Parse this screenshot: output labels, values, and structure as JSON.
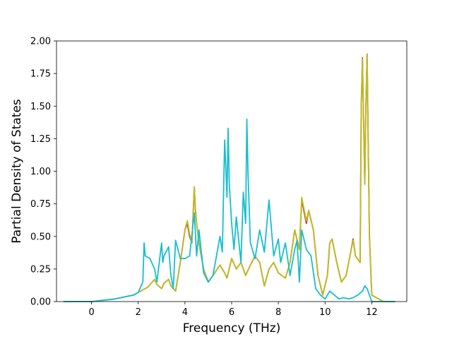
{
  "chart_data": {
    "type": "line",
    "xlabel": "Frequency (THz)",
    "ylabel": "Partial Density of States",
    "xlim": [
      -1.5,
      13.5
    ],
    "ylim": [
      0,
      2.0
    ],
    "xticks": [
      0,
      2,
      4,
      6,
      8,
      10,
      12
    ],
    "yticks": [
      0.0,
      0.25,
      0.5,
      0.75,
      1.0,
      1.25,
      1.5,
      1.75,
      2.0
    ],
    "xtick_labels": [
      "0",
      "2",
      "4",
      "6",
      "8",
      "10",
      "12"
    ],
    "ytick_labels": [
      "0.00",
      "0.25",
      "0.50",
      "0.75",
      "1.00",
      "1.25",
      "1.50",
      "1.75",
      "2.00"
    ],
    "grid": false,
    "series": [
      {
        "color": "#d62728",
        "x": [
          -1.2,
          0.0,
          1.0,
          1.8,
          2.0,
          2.4,
          2.7,
          2.8,
          3.0,
          3.1,
          3.3,
          3.4,
          3.6,
          3.8,
          4.0,
          4.1,
          4.2,
          4.3,
          4.4,
          4.45,
          4.5,
          4.6,
          4.8,
          5.0,
          5.2,
          5.5,
          5.7,
          5.8,
          6.0,
          6.2,
          6.4,
          6.6,
          6.8,
          7.0,
          7.2,
          7.4,
          7.6,
          7.8,
          8.0,
          8.3,
          8.5,
          8.7,
          8.9,
          9.0,
          9.2,
          9.3,
          9.5,
          9.7,
          9.9,
          10.1,
          10.2,
          10.3,
          10.5,
          10.7,
          10.9,
          11.1,
          11.2,
          11.3,
          11.5,
          11.55,
          11.6,
          11.65,
          11.7,
          11.75,
          11.8,
          11.85,
          11.9,
          12.0,
          12.5,
          13.0
        ],
        "y": [
          0.0,
          0.0,
          0.02,
          0.05,
          0.07,
          0.11,
          0.17,
          0.13,
          0.1,
          0.14,
          0.17,
          0.12,
          0.08,
          0.3,
          0.55,
          0.6,
          0.5,
          0.45,
          0.88,
          0.7,
          0.6,
          0.45,
          0.25,
          0.15,
          0.2,
          0.28,
          0.22,
          0.18,
          0.33,
          0.25,
          0.3,
          0.2,
          0.28,
          0.35,
          0.3,
          0.12,
          0.25,
          0.3,
          0.22,
          0.18,
          0.3,
          0.55,
          0.4,
          0.78,
          0.6,
          0.7,
          0.55,
          0.2,
          0.05,
          0.2,
          0.45,
          0.48,
          0.3,
          0.15,
          0.2,
          0.38,
          0.48,
          0.35,
          0.3,
          1.5,
          1.87,
          1.4,
          0.9,
          1.5,
          1.9,
          1.2,
          0.5,
          0.05,
          0.0,
          0.0
        ]
      },
      {
        "color": "#bcbd22",
        "x": [
          -1.2,
          0.0,
          1.0,
          1.8,
          2.0,
          2.4,
          2.7,
          2.8,
          3.0,
          3.1,
          3.3,
          3.4,
          3.6,
          3.8,
          4.0,
          4.1,
          4.2,
          4.3,
          4.4,
          4.45,
          4.5,
          4.6,
          4.8,
          5.0,
          5.2,
          5.5,
          5.7,
          5.8,
          6.0,
          6.2,
          6.4,
          6.6,
          6.8,
          7.0,
          7.2,
          7.4,
          7.6,
          7.8,
          8.0,
          8.3,
          8.5,
          8.7,
          8.9,
          9.0,
          9.2,
          9.3,
          9.5,
          9.7,
          9.9,
          10.1,
          10.2,
          10.3,
          10.5,
          10.7,
          10.9,
          11.1,
          11.2,
          11.3,
          11.5,
          11.55,
          11.6,
          11.65,
          11.7,
          11.75,
          11.8,
          11.85,
          11.9,
          12.0,
          12.5,
          13.0
        ],
        "y": [
          0.0,
          0.0,
          0.02,
          0.05,
          0.07,
          0.11,
          0.17,
          0.13,
          0.1,
          0.14,
          0.17,
          0.12,
          0.08,
          0.3,
          0.55,
          0.62,
          0.52,
          0.45,
          0.88,
          0.72,
          0.6,
          0.45,
          0.25,
          0.15,
          0.2,
          0.28,
          0.22,
          0.18,
          0.33,
          0.25,
          0.3,
          0.2,
          0.28,
          0.35,
          0.3,
          0.12,
          0.25,
          0.3,
          0.22,
          0.18,
          0.3,
          0.55,
          0.4,
          0.8,
          0.62,
          0.7,
          0.55,
          0.2,
          0.05,
          0.2,
          0.45,
          0.48,
          0.3,
          0.15,
          0.2,
          0.38,
          0.47,
          0.35,
          0.3,
          1.5,
          1.86,
          1.4,
          0.9,
          1.5,
          1.9,
          1.2,
          0.5,
          0.05,
          0.0,
          0.0
        ]
      },
      {
        "color": "#17becf",
        "x": [
          -1.2,
          0.0,
          1.0,
          1.8,
          2.0,
          2.2,
          2.25,
          2.3,
          2.5,
          2.7,
          2.8,
          3.0,
          3.05,
          3.1,
          3.3,
          3.4,
          3.5,
          3.6,
          3.8,
          4.0,
          4.2,
          4.4,
          4.5,
          4.6,
          4.8,
          5.0,
          5.2,
          5.5,
          5.6,
          5.7,
          5.8,
          5.85,
          5.9,
          6.0,
          6.1,
          6.2,
          6.4,
          6.5,
          6.6,
          6.65,
          6.7,
          6.8,
          7.0,
          7.2,
          7.4,
          7.6,
          7.8,
          8.0,
          8.1,
          8.3,
          8.5,
          8.7,
          8.8,
          8.9,
          9.0,
          9.2,
          9.4,
          9.6,
          9.8,
          10.0,
          10.2,
          10.4,
          10.6,
          10.8,
          11.0,
          11.2,
          11.4,
          11.6,
          11.7,
          11.8,
          11.9,
          12.0,
          12.5,
          13.0
        ],
        "y": [
          0.0,
          0.0,
          0.02,
          0.05,
          0.07,
          0.15,
          0.45,
          0.35,
          0.33,
          0.25,
          0.15,
          0.45,
          0.3,
          0.35,
          0.42,
          0.2,
          0.1,
          0.47,
          0.33,
          0.33,
          0.35,
          0.68,
          0.35,
          0.55,
          0.22,
          0.15,
          0.2,
          0.5,
          0.38,
          1.24,
          0.8,
          1.33,
          0.9,
          0.6,
          0.4,
          0.65,
          0.3,
          0.84,
          0.6,
          1.4,
          1.0,
          0.45,
          0.33,
          0.55,
          0.38,
          0.78,
          0.35,
          0.48,
          0.3,
          0.45,
          0.2,
          0.4,
          0.47,
          0.15,
          0.55,
          0.4,
          0.35,
          0.1,
          0.05,
          0.02,
          0.08,
          0.05,
          0.02,
          0.03,
          0.02,
          0.03,
          0.05,
          0.08,
          0.12,
          0.1,
          0.05,
          0.0,
          0.0,
          0.0
        ]
      }
    ]
  }
}
